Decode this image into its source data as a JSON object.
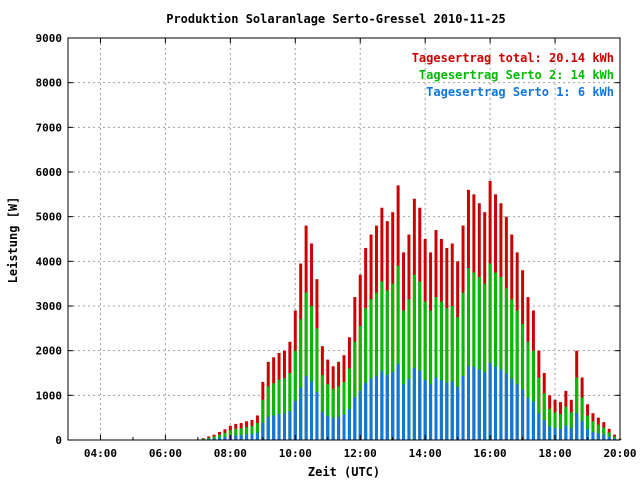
{
  "chart_data": {
    "type": "bar",
    "title": "Produktion Solaranlage Serto-Gressel 2010-11-25",
    "xlabel": "Zeit (UTC)",
    "ylabel": "Leistung [W]",
    "xlim": [
      "03:00",
      "20:00"
    ],
    "ylim": [
      0,
      9000
    ],
    "x_ticks": [
      "04:00",
      "06:00",
      "08:00",
      "10:00",
      "12:00",
      "14:00",
      "16:00",
      "18:00",
      "20:00"
    ],
    "y_ticks": [
      "0",
      "1000",
      "2000",
      "3000",
      "4000",
      "5000",
      "6000",
      "7000",
      "8000",
      "9000"
    ],
    "grid": true,
    "legend_position": "top-right",
    "stacked": true,
    "legend": [
      {
        "label": "Tagesertrag total: 20.14 kWh",
        "color": "#cc0000"
      },
      {
        "label": "Tagesertrag Serto 2: 14 kWh",
        "color": "#00bb00"
      },
      {
        "label": "Tagesertrag Serto 1: 6 kWh",
        "color": "#1177dd"
      }
    ],
    "series": [
      {
        "name": "total",
        "color": "#cc0000",
        "points": [
          [
            "07:00",
            0
          ],
          [
            "07:10",
            40
          ],
          [
            "07:20",
            80
          ],
          [
            "07:30",
            120
          ],
          [
            "07:40",
            180
          ],
          [
            "07:50",
            240
          ],
          [
            "08:00",
            320
          ],
          [
            "08:10",
            360
          ],
          [
            "08:20",
            380
          ],
          [
            "08:30",
            420
          ],
          [
            "08:40",
            450
          ],
          [
            "08:50",
            550
          ],
          [
            "09:00",
            1300
          ],
          [
            "09:10",
            1750
          ],
          [
            "09:20",
            1850
          ],
          [
            "09:30",
            1950
          ],
          [
            "09:40",
            2000
          ],
          [
            "09:50",
            2200
          ],
          [
            "10:00",
            2900
          ],
          [
            "10:10",
            3950
          ],
          [
            "10:20",
            4800
          ],
          [
            "10:30",
            4400
          ],
          [
            "10:40",
            3600
          ],
          [
            "10:50",
            2100
          ],
          [
            "11:00",
            1800
          ],
          [
            "11:10",
            1650
          ],
          [
            "11:20",
            1750
          ],
          [
            "11:30",
            1900
          ],
          [
            "11:40",
            2300
          ],
          [
            "11:50",
            3200
          ],
          [
            "12:00",
            3700
          ],
          [
            "12:10",
            4300
          ],
          [
            "12:20",
            4600
          ],
          [
            "12:30",
            4800
          ],
          [
            "12:40",
            5200
          ],
          [
            "12:50",
            4900
          ],
          [
            "13:00",
            5100
          ],
          [
            "13:10",
            5700
          ],
          [
            "13:20",
            4200
          ],
          [
            "13:30",
            4600
          ],
          [
            "13:40",
            5400
          ],
          [
            "13:50",
            5200
          ],
          [
            "14:00",
            4500
          ],
          [
            "14:10",
            4200
          ],
          [
            "14:20",
            4700
          ],
          [
            "14:30",
            4500
          ],
          [
            "14:40",
            4300
          ],
          [
            "14:50",
            4400
          ],
          [
            "15:00",
            4000
          ],
          [
            "15:10",
            4800
          ],
          [
            "15:20",
            5600
          ],
          [
            "15:30",
            5500
          ],
          [
            "15:40",
            5300
          ],
          [
            "15:50",
            5100
          ],
          [
            "16:00",
            5800
          ],
          [
            "16:10",
            5500
          ],
          [
            "16:20",
            5300
          ],
          [
            "16:30",
            5000
          ],
          [
            "16:40",
            4600
          ],
          [
            "16:50",
            4200
          ],
          [
            "17:00",
            3800
          ],
          [
            "17:10",
            3200
          ],
          [
            "17:20",
            2900
          ],
          [
            "17:30",
            2000
          ],
          [
            "17:40",
            1500
          ],
          [
            "17:50",
            1000
          ],
          [
            "18:00",
            900
          ],
          [
            "18:10",
            850
          ],
          [
            "18:20",
            1100
          ],
          [
            "18:30",
            900
          ],
          [
            "18:40",
            2000
          ],
          [
            "18:50",
            1400
          ],
          [
            "19:00",
            800
          ],
          [
            "19:10",
            600
          ],
          [
            "19:20",
            500
          ],
          [
            "19:30",
            400
          ],
          [
            "19:40",
            250
          ],
          [
            "19:50",
            120
          ],
          [
            "20:00",
            30
          ]
        ]
      },
      {
        "name": "Serto 2",
        "color": "#00bb00",
        "points": [
          [
            "07:00",
            0
          ],
          [
            "07:10",
            25
          ],
          [
            "07:20",
            50
          ],
          [
            "07:30",
            80
          ],
          [
            "07:40",
            120
          ],
          [
            "07:50",
            160
          ],
          [
            "08:00",
            220
          ],
          [
            "08:10",
            250
          ],
          [
            "08:20",
            260
          ],
          [
            "08:30",
            290
          ],
          [
            "08:40",
            310
          ],
          [
            "08:50",
            380
          ],
          [
            "09:00",
            900
          ],
          [
            "09:10",
            1200
          ],
          [
            "09:20",
            1270
          ],
          [
            "09:30",
            1350
          ],
          [
            "09:40",
            1380
          ],
          [
            "09:50",
            1500
          ],
          [
            "10:00",
            2000
          ],
          [
            "10:10",
            2700
          ],
          [
            "10:20",
            3300
          ],
          [
            "10:30",
            3000
          ],
          [
            "10:40",
            2500
          ],
          [
            "10:50",
            1450
          ],
          [
            "11:00",
            1250
          ],
          [
            "11:10",
            1150
          ],
          [
            "11:20",
            1200
          ],
          [
            "11:30",
            1300
          ],
          [
            "11:40",
            1600
          ],
          [
            "11:50",
            2200
          ],
          [
            "12:00",
            2550
          ],
          [
            "12:10",
            2950
          ],
          [
            "12:20",
            3150
          ],
          [
            "12:30",
            3300
          ],
          [
            "12:40",
            3550
          ],
          [
            "12:50",
            3350
          ],
          [
            "13:00",
            3500
          ],
          [
            "13:10",
            3900
          ],
          [
            "13:20",
            2900
          ],
          [
            "13:30",
            3150
          ],
          [
            "13:40",
            3700
          ],
          [
            "13:50",
            3550
          ],
          [
            "14:00",
            3100
          ],
          [
            "14:10",
            2900
          ],
          [
            "14:20",
            3200
          ],
          [
            "14:30",
            3100
          ],
          [
            "14:40",
            2950
          ],
          [
            "14:50",
            3000
          ],
          [
            "15:00",
            2750
          ],
          [
            "15:10",
            3300
          ],
          [
            "15:20",
            3850
          ],
          [
            "15:30",
            3750
          ],
          [
            "15:40",
            3650
          ],
          [
            "15:50",
            3500
          ],
          [
            "16:00",
            3950
          ],
          [
            "16:10",
            3750
          ],
          [
            "16:20",
            3650
          ],
          [
            "16:30",
            3400
          ],
          [
            "16:40",
            3150
          ],
          [
            "16:50",
            2900
          ],
          [
            "17:00",
            2600
          ],
          [
            "17:10",
            2200
          ],
          [
            "17:20",
            2000
          ],
          [
            "17:30",
            1400
          ],
          [
            "17:40",
            1050
          ],
          [
            "17:50",
            700
          ],
          [
            "18:00",
            620
          ],
          [
            "18:10",
            580
          ],
          [
            "18:20",
            750
          ],
          [
            "18:30",
            620
          ],
          [
            "18:40",
            1400
          ],
          [
            "18:50",
            950
          ],
          [
            "19:00",
            550
          ],
          [
            "19:10",
            420
          ],
          [
            "19:20",
            350
          ],
          [
            "19:30",
            280
          ],
          [
            "19:40",
            170
          ],
          [
            "19:50",
            80
          ],
          [
            "20:00",
            20
          ]
        ]
      },
      {
        "name": "Serto 1",
        "color": "#1177dd",
        "points": [
          [
            "07:00",
            0
          ],
          [
            "07:10",
            10
          ],
          [
            "07:20",
            25
          ],
          [
            "07:30",
            35
          ],
          [
            "07:40",
            55
          ],
          [
            "07:50",
            70
          ],
          [
            "08:00",
            95
          ],
          [
            "08:10",
            105
          ],
          [
            "08:20",
            110
          ],
          [
            "08:30",
            125
          ],
          [
            "08:40",
            135
          ],
          [
            "08:50",
            165
          ],
          [
            "09:00",
            390
          ],
          [
            "09:10",
            520
          ],
          [
            "09:20",
            550
          ],
          [
            "09:30",
            580
          ],
          [
            "09:40",
            600
          ],
          [
            "09:50",
            650
          ],
          [
            "10:00",
            870
          ],
          [
            "10:10",
            1180
          ],
          [
            "10:20",
            1430
          ],
          [
            "10:30",
            1310
          ],
          [
            "10:40",
            1070
          ],
          [
            "10:50",
            630
          ],
          [
            "11:00",
            540
          ],
          [
            "11:10",
            500
          ],
          [
            "11:20",
            520
          ],
          [
            "11:30",
            570
          ],
          [
            "11:40",
            690
          ],
          [
            "11:50",
            960
          ],
          [
            "12:00",
            1100
          ],
          [
            "12:10",
            1280
          ],
          [
            "12:20",
            1370
          ],
          [
            "12:30",
            1430
          ],
          [
            "12:40",
            1550
          ],
          [
            "12:50",
            1460
          ],
          [
            "13:00",
            1520
          ],
          [
            "13:10",
            1700
          ],
          [
            "13:20",
            1250
          ],
          [
            "13:30",
            1370
          ],
          [
            "13:40",
            1610
          ],
          [
            "13:50",
            1550
          ],
          [
            "14:00",
            1340
          ],
          [
            "14:10",
            1250
          ],
          [
            "14:20",
            1400
          ],
          [
            "14:30",
            1340
          ],
          [
            "14:40",
            1280
          ],
          [
            "14:50",
            1310
          ],
          [
            "15:00",
            1190
          ],
          [
            "15:10",
            1430
          ],
          [
            "15:20",
            1670
          ],
          [
            "15:30",
            1640
          ],
          [
            "15:40",
            1580
          ],
          [
            "15:50",
            1520
          ],
          [
            "16:00",
            1730
          ],
          [
            "16:10",
            1640
          ],
          [
            "16:20",
            1580
          ],
          [
            "16:30",
            1490
          ],
          [
            "16:40",
            1370
          ],
          [
            "16:50",
            1250
          ],
          [
            "17:00",
            1130
          ],
          [
            "17:10",
            950
          ],
          [
            "17:20",
            860
          ],
          [
            "17:30",
            600
          ],
          [
            "17:40",
            450
          ],
          [
            "17:50",
            300
          ],
          [
            "18:00",
            270
          ],
          [
            "18:10",
            250
          ],
          [
            "18:20",
            330
          ],
          [
            "18:30",
            270
          ],
          [
            "18:40",
            600
          ],
          [
            "18:50",
            420
          ],
          [
            "19:00",
            240
          ],
          [
            "19:10",
            180
          ],
          [
            "19:20",
            150
          ],
          [
            "19:30",
            120
          ],
          [
            "19:40",
            75
          ],
          [
            "19:50",
            36
          ],
          [
            "20:00",
            9
          ]
        ]
      }
    ]
  }
}
